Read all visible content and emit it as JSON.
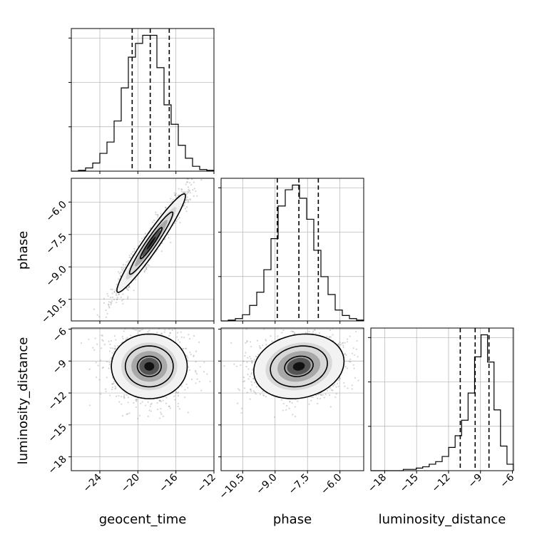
{
  "chart_data": {
    "type": "corner",
    "parameters": [
      "geocent_time",
      "phase",
      "luminosity_distance"
    ],
    "ranges": {
      "geocent_time": [
        -27.0,
        -12.0
      ],
      "phase": [
        -11.5,
        -4.9
      ],
      "luminosity_distance": [
        -19.3,
        -5.9
      ]
    },
    "ticks": {
      "geocent_time": [
        -24,
        -20,
        -16,
        -12
      ],
      "phase": [
        -10.5,
        -9.0,
        -7.5,
        -6.0
      ],
      "luminosity_distance": [
        -18,
        -15,
        -12,
        -9,
        -6
      ]
    },
    "tick_labels": {
      "geocent_time": [
        "−24",
        "−20",
        "−16",
        "−12"
      ],
      "phase": [
        "−10.5",
        "−9.0",
        "−7.5",
        "−6.0"
      ],
      "luminosity_distance": [
        "−18",
        "−15",
        "−12",
        "−9",
        "−6"
      ]
    },
    "quantiles": {
      "geocent_time": [
        -20.6,
        -18.7,
        -16.7
      ],
      "phase": [
        -8.9,
        -7.9,
        -7.0
      ],
      "luminosity_distance": [
        -10.9,
        -9.5,
        -8.2
      ]
    },
    "marginals": {
      "geocent_time": [
        0,
        1,
        4,
        10,
        22,
        36,
        62,
        103,
        141,
        158,
        168,
        168,
        128,
        82,
        58,
        32,
        16,
        6,
        2,
        1
      ],
      "phase": [
        0,
        1,
        3,
        8,
        20,
        37,
        66,
        106,
        148,
        169,
        175,
        158,
        131,
        91,
        57,
        34,
        14,
        7,
        3,
        1
      ],
      "luminosity_distance": [
        0,
        0,
        0,
        0,
        0,
        1,
        1,
        2,
        3,
        5,
        7,
        11,
        18,
        27,
        39,
        60,
        88,
        105,
        84,
        47,
        19,
        5
      ]
    },
    "pairs": [
      {
        "x": "geocent_time",
        "y": "phase",
        "mean": [
          -18.6,
          -7.9
        ],
        "sd": [
          1.9,
          1.2
        ],
        "corr": 0.96
      },
      {
        "x": "geocent_time",
        "y": "luminosity_distance",
        "mean": [
          -18.8,
          -9.5
        ],
        "sd": [
          2.1,
          1.6
        ],
        "corr": 0.0
      },
      {
        "x": "phase",
        "y": "luminosity_distance",
        "mean": [
          -7.9,
          -9.5
        ],
        "sd": [
          1.1,
          1.6
        ],
        "corr": 0.15
      }
    ],
    "grid": true,
    "colors": {
      "contour": "#000000",
      "points": "#888888",
      "grid": "#b0b0b0"
    }
  }
}
